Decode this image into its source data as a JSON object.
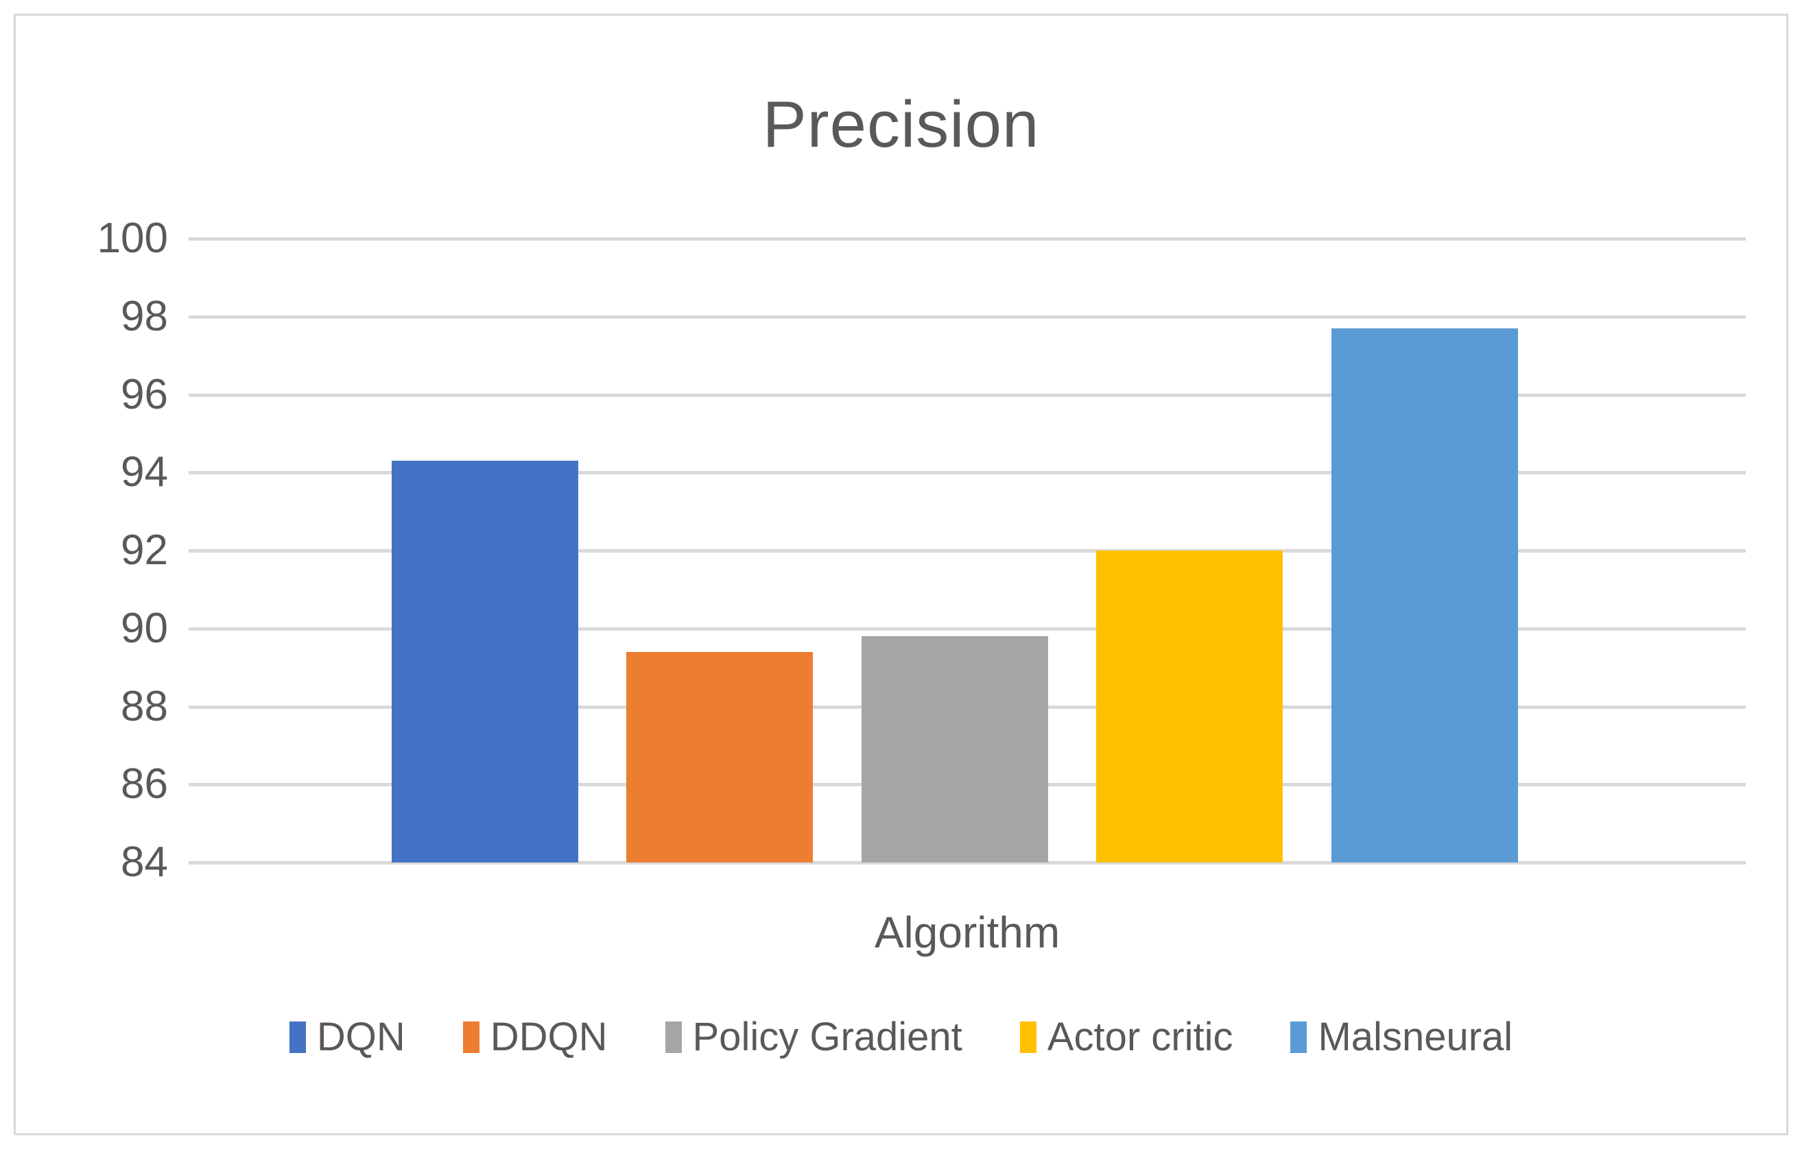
{
  "chart": {
    "title": "Precision",
    "xlabel": "Algorithm"
  },
  "colors": {
    "gridline": "#d9d9d9",
    "text": "#595959",
    "background": "#ffffff"
  },
  "chart_data": {
    "type": "bar",
    "title": "Precision",
    "xlabel": "Algorithm",
    "ylabel": "",
    "categories": [
      "DQN",
      "DDQN",
      "Policy Gradient",
      "Actor critic",
      "Malsneural"
    ],
    "values": [
      94.3,
      89.4,
      89.8,
      92.0,
      97.7
    ],
    "colors": [
      "#4472C4",
      "#ED7D31",
      "#A5A5A5",
      "#FFC000",
      "#5B9BD5"
    ],
    "ylim": [
      84,
      100
    ],
    "yticks": [
      84,
      86,
      88,
      90,
      92,
      94,
      96,
      98,
      100
    ],
    "grid": true,
    "legend_position": "bottom"
  }
}
